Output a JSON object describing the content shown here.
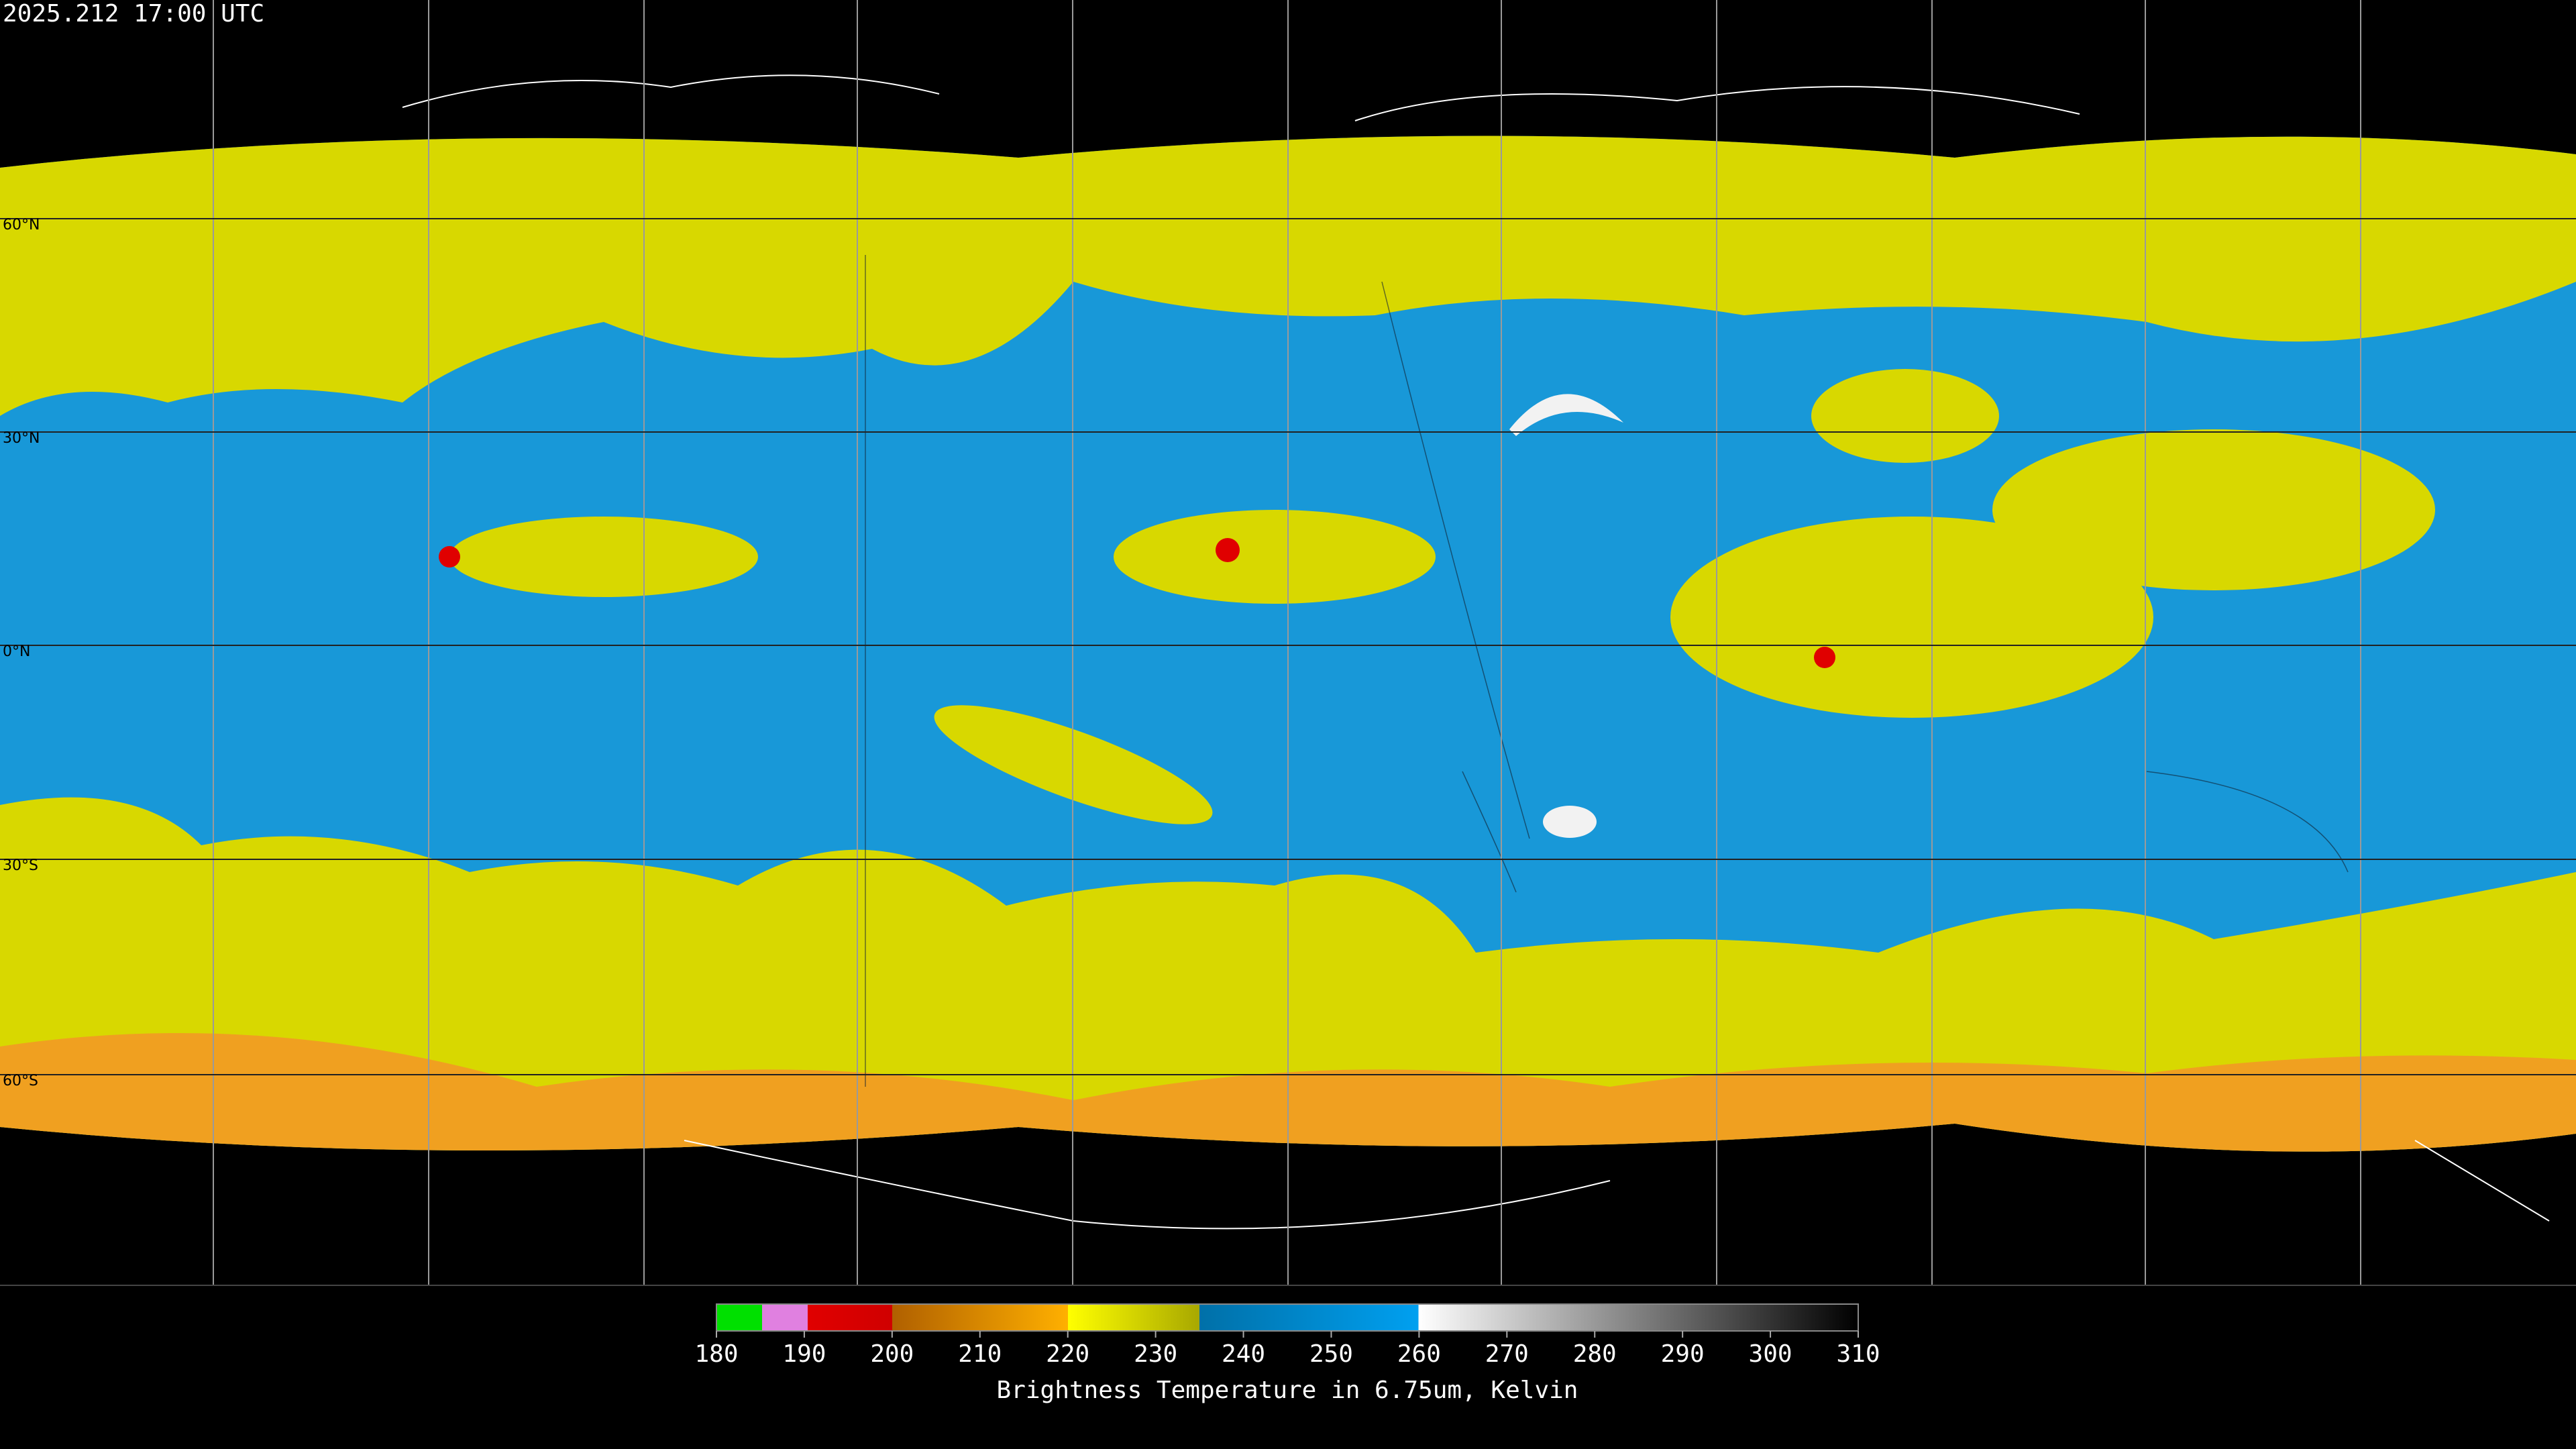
{
  "header": {
    "timestamp": "2025.212 17:00 UTC"
  },
  "map": {
    "lat_labels": [
      "60°N",
      "30°N",
      "0°N",
      "30°S",
      "60°S"
    ]
  },
  "colorbar": {
    "range": [
      180,
      310
    ],
    "ticks": [
      180,
      190,
      200,
      210,
      220,
      230,
      240,
      250,
      260,
      270,
      280,
      290,
      300,
      310
    ],
    "label": "Brightness Temperature in 6.75um, Kelvin"
  }
}
